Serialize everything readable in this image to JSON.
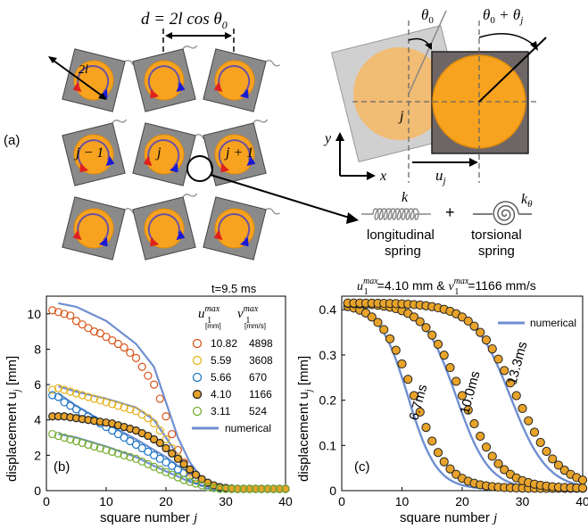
{
  "panel_a": {
    "label": "(a)",
    "d_eq": "d = 2l cos θ",
    "d_sub": "0",
    "twol": "2l",
    "j_labels": [
      "j − 1",
      "j",
      "j + 1"
    ],
    "theta0": "θ",
    "theta0_sub": "0",
    "theta_sum": "θ",
    "theta_sum_mid": " + θ",
    "sub0": "0",
    "subj": "j",
    "sq_j": "j",
    "axis_y": "y",
    "axis_x": "x",
    "uj": "u",
    "uj_sub": "j",
    "k": "k",
    "ktheta": "k",
    "ktheta_sub": "θ",
    "plus": "+",
    "long_spring_l1": "longitudinal",
    "long_spring_l2": "spring",
    "tors_spring_l1": "torsional",
    "tors_spring_l2": "spring",
    "colors": {
      "square": "#8a8a8a",
      "disk": "#f7a31f",
      "red_arrow": "#e0201c",
      "blue_arrow": "#1a1ad6",
      "purple_arc": "#6b52a3"
    }
  },
  "panel_b": {
    "label": "(b)",
    "title": "t=9.5 ms",
    "ylabel": "displacement u",
    "ylabel_sub": "j",
    "ylabel_unit": " [mm]",
    "xlabel": "square number ",
    "xlabel_var": "j",
    "xticks": [
      "0",
      "10",
      "20",
      "30",
      "40"
    ],
    "yticks": [
      "0",
      "2",
      "4",
      "6",
      "8",
      "10"
    ],
    "legend_head_u": "u",
    "legend_head_u_sub": "1",
    "legend_head_u_sup": "max",
    "legend_head_u_unit": "[mm]",
    "legend_head_v": "v",
    "legend_head_v_sub": "1",
    "legend_head_v_sup": "max",
    "legend_head_v_unit": "[mm/s]",
    "legend_rows": [
      {
        "u": "10.82",
        "v": "4898",
        "color": "#d9541a",
        "filled": false
      },
      {
        "u": "5.59",
        "v": "3608",
        "color": "#e6b31e",
        "filled": false
      },
      {
        "u": "5.66",
        "v": "670",
        "color": "#1f77c4",
        "filled": false
      },
      {
        "u": "4.10",
        "v": "1166",
        "color": "#e8a32a",
        "filled": true
      },
      {
        "u": "3.11",
        "v": "524",
        "color": "#77ac30",
        "filled": false
      }
    ],
    "legend_numerical": "numerical"
  },
  "panel_c": {
    "label": "(c)",
    "title_u": "u",
    "title_u_sub": "1",
    "title_u_sup": "max",
    "title_mid": "=4.10 mm & ",
    "title_v": "v",
    "title_v_sub": "1",
    "title_v_sup": "max",
    "title_end": "=1166 mm/s",
    "ylabel": "displacement u",
    "ylabel_sub": "j",
    "ylabel_unit": " [mm]",
    "xlabel": "square number ",
    "xlabel_var": "j",
    "xticks": [
      "0",
      "10",
      "20",
      "30",
      "40"
    ],
    "yticks": [
      "0",
      "0.1",
      "0.2",
      "0.3",
      "0.4"
    ],
    "legend_numerical": "numerical",
    "time_labels": [
      "6.7ms",
      "10.0ms",
      "13.3ms"
    ]
  },
  "chart_data": [
    {
      "type": "scatter",
      "panel": "b",
      "title": "t=9.5 ms",
      "xlabel": "square number j",
      "ylabel": "displacement u_j [mm]",
      "xlim": [
        0,
        40
      ],
      "ylim": [
        0,
        11
      ],
      "legend_position": "top-right",
      "series": [
        {
          "name": "10.82 / 4898",
          "color": "#d9541a",
          "filled": false,
          "x": [
            1,
            2,
            3,
            4,
            5,
            6,
            7,
            8,
            9,
            10,
            11,
            12,
            13,
            14,
            15,
            16,
            17,
            18,
            19,
            20,
            21,
            22,
            23,
            24,
            25,
            26,
            27,
            28,
            29,
            30,
            31,
            32,
            33,
            34,
            35,
            36,
            37,
            38,
            39,
            40
          ],
          "y": [
            10.2,
            10.1,
            10.0,
            9.9,
            9.6,
            9.4,
            9.2,
            9.0,
            8.9,
            8.7,
            8.5,
            8.3,
            8.1,
            7.8,
            7.5,
            7.0,
            6.5,
            6.0,
            5.2,
            4.2,
            3.2,
            2.3,
            1.6,
            1.1,
            0.7,
            0.45,
            0.3,
            0.2,
            0.15,
            0.12,
            0.1,
            0.1,
            0.1,
            0.1,
            0.1,
            0.1,
            0.1,
            0.1,
            0.1,
            0.1
          ]
        },
        {
          "name": "5.59 / 3608",
          "color": "#e6b31e",
          "filled": false,
          "x": [
            1,
            2,
            3,
            4,
            5,
            6,
            7,
            8,
            9,
            10,
            11,
            12,
            13,
            14,
            15,
            16,
            17,
            18,
            19,
            20,
            21,
            22,
            23,
            24,
            25,
            26,
            27,
            28,
            29,
            30,
            31,
            32,
            33,
            34,
            35,
            36,
            37,
            38,
            39,
            40
          ],
          "y": [
            5.7,
            5.8,
            5.7,
            5.6,
            5.5,
            5.4,
            5.3,
            5.2,
            5.1,
            5.0,
            4.9,
            4.8,
            4.7,
            4.6,
            4.5,
            4.3,
            4.1,
            3.8,
            3.4,
            2.9,
            2.4,
            1.9,
            1.4,
            1.0,
            0.7,
            0.45,
            0.3,
            0.2,
            0.15,
            0.12,
            0.1,
            0.1,
            0.1,
            0.1,
            0.1,
            0.1,
            0.1,
            0.1,
            0.1,
            0.1
          ]
        },
        {
          "name": "5.66 / 670",
          "color": "#1f77c4",
          "filled": false,
          "x": [
            1,
            2,
            3,
            4,
            5,
            6,
            7,
            8,
            9,
            10,
            11,
            12,
            13,
            14,
            15,
            16,
            17,
            18,
            19,
            20,
            21,
            22,
            23,
            24,
            25,
            26,
            27,
            28,
            29,
            30,
            31,
            32,
            33,
            34,
            35,
            36,
            37,
            38,
            39,
            40
          ],
          "y": [
            5.4,
            5.3,
            5.0,
            4.8,
            4.6,
            4.4,
            4.2,
            4.0,
            3.8,
            3.6,
            3.4,
            3.2,
            3.0,
            2.8,
            2.6,
            2.4,
            2.2,
            2.0,
            1.8,
            1.6,
            1.4,
            1.2,
            1.0,
            0.8,
            0.6,
            0.45,
            0.3,
            0.2,
            0.15,
            0.1,
            0.1,
            0.1,
            0.1,
            0.1,
            0.1,
            0.1,
            0.1,
            0.1,
            0.1,
            0.1
          ]
        },
        {
          "name": "4.10 / 1166",
          "color": "#e8a32a",
          "filled": true,
          "x": [
            1,
            2,
            3,
            4,
            5,
            6,
            7,
            8,
            9,
            10,
            11,
            12,
            13,
            14,
            15,
            16,
            17,
            18,
            19,
            20,
            21,
            22,
            23,
            24,
            25,
            26,
            27,
            28,
            29,
            30,
            31,
            32,
            33,
            34,
            35,
            36,
            37,
            38,
            39,
            40
          ],
          "y": [
            4.2,
            4.2,
            4.2,
            4.15,
            4.1,
            4.05,
            4.0,
            3.95,
            3.9,
            3.85,
            3.8,
            3.7,
            3.6,
            3.5,
            3.4,
            3.25,
            3.1,
            2.9,
            2.7,
            2.4,
            2.1,
            1.8,
            1.5,
            1.2,
            0.9,
            0.65,
            0.45,
            0.3,
            0.2,
            0.15,
            0.12,
            0.1,
            0.1,
            0.1,
            0.1,
            0.1,
            0.1,
            0.1,
            0.1,
            0.1
          ]
        },
        {
          "name": "3.11 / 524",
          "color": "#77ac30",
          "filled": false,
          "x": [
            1,
            2,
            3,
            4,
            5,
            6,
            7,
            8,
            9,
            10,
            11,
            12,
            13,
            14,
            15,
            16,
            17,
            18,
            19,
            20,
            21,
            22,
            23,
            24,
            25,
            26,
            27,
            28,
            29,
            30,
            31,
            32,
            33,
            34,
            35,
            36,
            37,
            38,
            39,
            40
          ],
          "y": [
            3.2,
            3.1,
            3.0,
            2.9,
            2.8,
            2.7,
            2.6,
            2.5,
            2.4,
            2.3,
            2.2,
            2.1,
            2.0,
            1.9,
            1.8,
            1.65,
            1.5,
            1.35,
            1.2,
            1.05,
            0.9,
            0.75,
            0.6,
            0.5,
            0.4,
            0.3,
            0.2,
            0.15,
            0.1,
            0.1,
            0.1,
            0.1,
            0.1,
            0.1,
            0.1,
            0.1,
            0.1,
            0.1,
            0.1,
            0.1
          ]
        }
      ],
      "numerical": [
        {
          "for": "10.82",
          "x": [
            2,
            5,
            10,
            15,
            18,
            20,
            22,
            24,
            26,
            28,
            30,
            34,
            40
          ],
          "y": [
            10.6,
            10.4,
            9.6,
            8.3,
            7.0,
            5.0,
            3.0,
            1.6,
            0.7,
            0.25,
            0.1,
            0.05,
            0.05
          ]
        },
        {
          "for": "5.59",
          "x": [
            2,
            5,
            10,
            15,
            18,
            20,
            22,
            24,
            26,
            28,
            30,
            34,
            40
          ],
          "y": [
            5.9,
            5.6,
            5.2,
            4.7,
            4.0,
            3.0,
            2.0,
            1.2,
            0.55,
            0.2,
            0.08,
            0.05,
            0.05
          ]
        },
        {
          "for": "5.66",
          "x": [
            2,
            5,
            10,
            15,
            18,
            20,
            22,
            24,
            26,
            28,
            30,
            34,
            40
          ],
          "y": [
            5.5,
            4.8,
            3.8,
            2.9,
            2.3,
            1.9,
            1.4,
            1.0,
            0.6,
            0.25,
            0.1,
            0.05,
            0.05
          ]
        },
        {
          "for": "4.10",
          "x": [
            2,
            5,
            10,
            15,
            18,
            20,
            22,
            24,
            26,
            28,
            30,
            34,
            40
          ],
          "y": [
            4.3,
            4.2,
            3.9,
            3.4,
            2.9,
            2.4,
            1.8,
            1.2,
            0.6,
            0.25,
            0.08,
            0.05,
            0.05
          ]
        },
        {
          "for": "3.11",
          "x": [
            2,
            5,
            10,
            15,
            18,
            20,
            22,
            24,
            26,
            28,
            30,
            34,
            40
          ],
          "y": [
            3.2,
            3.0,
            2.5,
            1.9,
            1.4,
            1.1,
            0.8,
            0.5,
            0.3,
            0.12,
            0.05,
            0.05,
            0.05
          ]
        }
      ]
    },
    {
      "type": "scatter",
      "panel": "c",
      "title": "u1max=4.10 mm & v1max=1166 mm/s",
      "xlabel": "square number j",
      "ylabel": "displacement u_j [mm]",
      "xlim": [
        0,
        40
      ],
      "ylim": [
        0,
        0.43
      ],
      "legend_position": "top-right",
      "series": [
        {
          "name": "6.7ms",
          "color": "#e8a32a",
          "filled": true,
          "center": 12,
          "width": 2.8
        },
        {
          "name": "10.0ms",
          "color": "#e8a32a",
          "filled": true,
          "center": 20,
          "width": 3.2
        },
        {
          "name": "13.3ms",
          "color": "#e8a32a",
          "filled": true,
          "center": 29,
          "width": 3.6
        }
      ],
      "amplitude": 0.41
    }
  ]
}
